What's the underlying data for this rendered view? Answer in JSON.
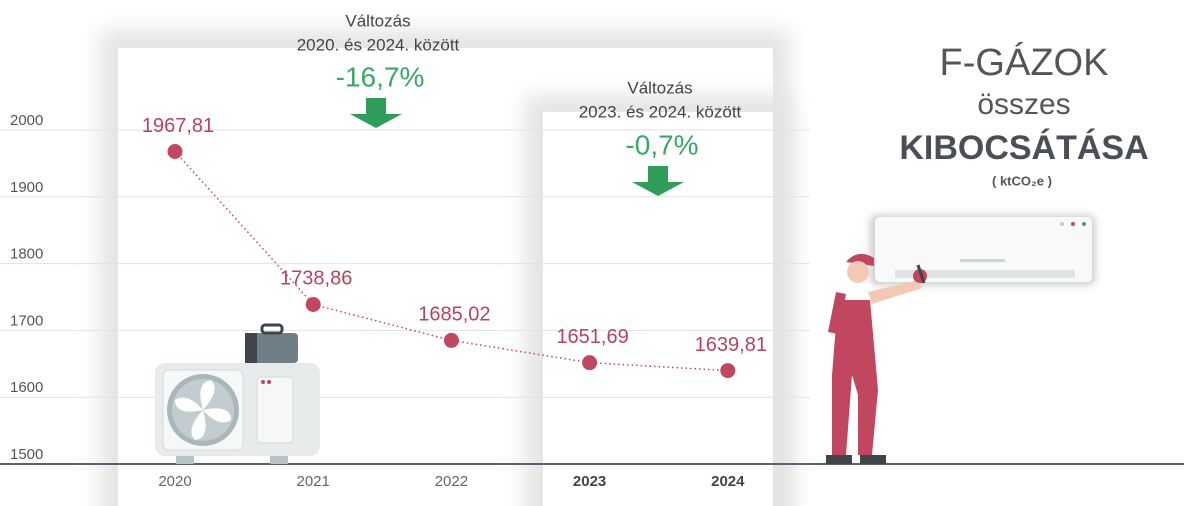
{
  "chart_data": {
    "type": "line",
    "title": "F-GÁZOK",
    "subtitle": "összes",
    "title_emphasis": "KIBOCSÁTÁSA",
    "unit": "( ktCO₂e )",
    "categories": [
      "2020",
      "2021",
      "2022",
      "2023",
      "2024"
    ],
    "highlighted_categories": [
      3,
      4
    ],
    "values": [
      1967.81,
      1738.86,
      1685.02,
      1651.69,
      1639.81
    ],
    "value_labels": [
      "1967,81",
      "1738,86",
      "1685,02",
      "1651,69",
      "1639,81"
    ],
    "color": "#c0475f",
    "ylim": [
      1500,
      2000
    ],
    "yticks": [
      1500,
      1600,
      1700,
      1800,
      1900,
      2000
    ],
    "grid": true,
    "annotations": [
      {
        "title": "Változás",
        "subtitle": "2020. és 2024. között",
        "change": "-16,7%"
      },
      {
        "title": "Változás",
        "subtitle": "2023. és 2024. között",
        "change": "-0,7%"
      }
    ]
  }
}
